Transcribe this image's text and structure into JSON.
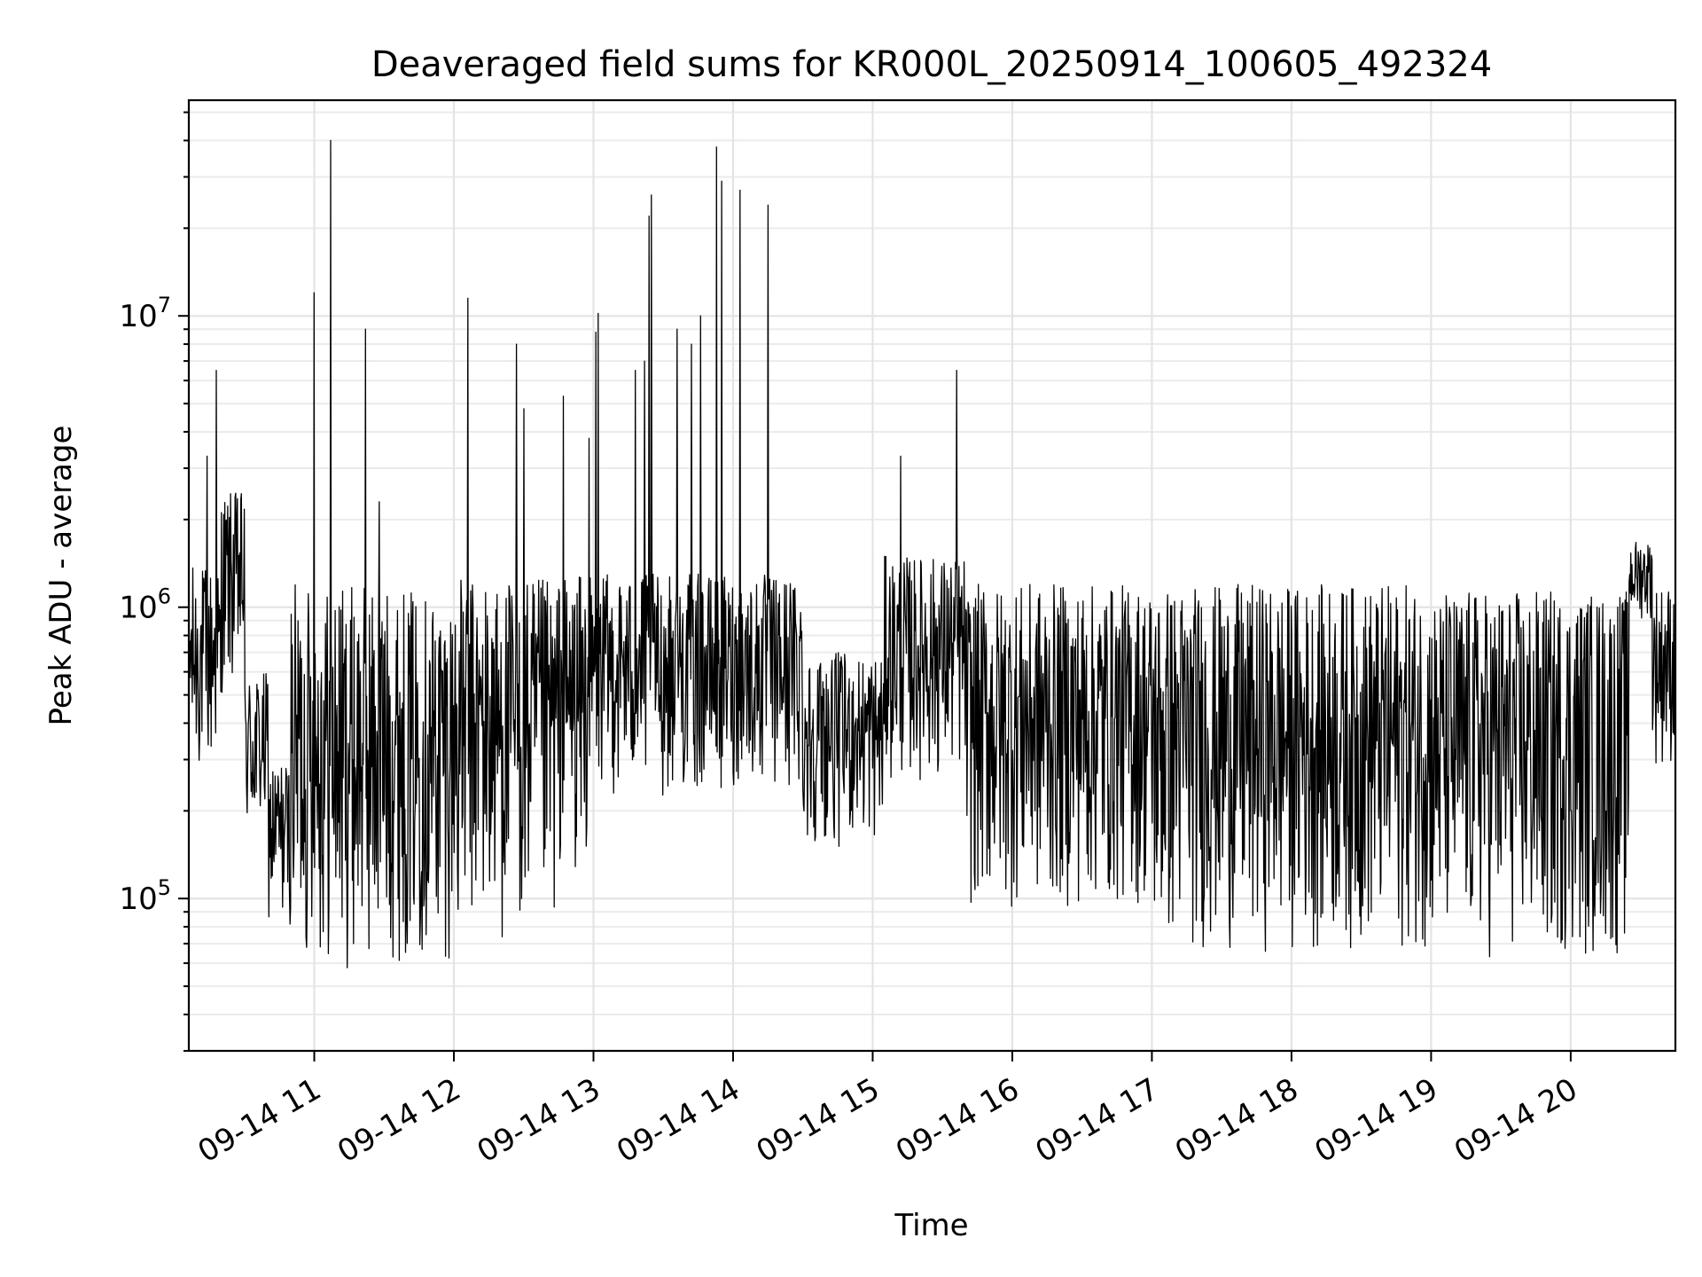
{
  "chart_data": {
    "type": "line",
    "title": "Deaveraged field sums for KR000L_20250914_100605_492324",
    "xlabel": "Time",
    "ylabel": "Peak ADU - average",
    "x_axis": {
      "type": "time",
      "range": [
        "2025-09-14T10:06:05",
        "2025-09-14T20:45:00"
      ],
      "ticks": [
        {
          "time": "2025-09-14T11:00:00",
          "label": "09-14 11"
        },
        {
          "time": "2025-09-14T12:00:00",
          "label": "09-14 12"
        },
        {
          "time": "2025-09-14T13:00:00",
          "label": "09-14 13"
        },
        {
          "time": "2025-09-14T14:00:00",
          "label": "09-14 14"
        },
        {
          "time": "2025-09-14T15:00:00",
          "label": "09-14 15"
        },
        {
          "time": "2025-09-14T16:00:00",
          "label": "09-14 16"
        },
        {
          "time": "2025-09-14T17:00:00",
          "label": "09-14 17"
        },
        {
          "time": "2025-09-14T18:00:00",
          "label": "09-14 18"
        },
        {
          "time": "2025-09-14T19:00:00",
          "label": "09-14 19"
        },
        {
          "time": "2025-09-14T20:00:00",
          "label": "09-14 20"
        }
      ]
    },
    "y_axis": {
      "scale": "log",
      "range": [
        30000,
        55000000
      ],
      "ticks": [
        {
          "value": 100000,
          "base": "10",
          "exp": "5"
        },
        {
          "value": 1000000,
          "base": "10",
          "exp": "6"
        },
        {
          "value": 10000000,
          "base": "10",
          "exp": "7"
        }
      ]
    },
    "grid": true,
    "line_color": "#000000",
    "envelope_note_free": true,
    "series": [
      {
        "sampling": "dense noisy trace; per-segment typical low/high bounds and notable spikes",
        "segments": [
          {
            "start": "2025-09-14T10:06:05",
            "end": "2025-09-14T10:20:00",
            "low": 250000,
            "high": 1400000
          },
          {
            "start": "2025-09-14T10:20:00",
            "end": "2025-09-14T10:30:00",
            "low": 500000,
            "high": 2500000
          },
          {
            "start": "2025-09-14T10:30:00",
            "end": "2025-09-14T10:40:00",
            "low": 150000,
            "high": 600000
          },
          {
            "start": "2025-09-14T10:40:00",
            "end": "2025-09-14T10:50:00",
            "low": 80000,
            "high": 300000
          },
          {
            "start": "2025-09-14T10:50:00",
            "end": "2025-09-14T11:30:00",
            "low": 55000,
            "high": 1200000
          },
          {
            "start": "2025-09-14T11:30:00",
            "end": "2025-09-14T12:00:00",
            "low": 60000,
            "high": 1150000
          },
          {
            "start": "2025-09-14T12:00:00",
            "end": "2025-09-14T12:45:00",
            "low": 70000,
            "high": 1250000
          },
          {
            "start": "2025-09-14T12:45:00",
            "end": "2025-09-14T13:00:00",
            "low": 120000,
            "high": 1300000
          },
          {
            "start": "2025-09-14T13:00:00",
            "end": "2025-09-14T14:30:00",
            "low": 220000,
            "high": 1300000
          },
          {
            "start": "2025-09-14T14:30:00",
            "end": "2025-09-14T15:05:00",
            "low": 150000,
            "high": 700000
          },
          {
            "start": "2025-09-14T15:05:00",
            "end": "2025-09-14T15:40:00",
            "low": 250000,
            "high": 1500000
          },
          {
            "start": "2025-09-14T15:40:00",
            "end": "2025-09-14T17:00:00",
            "low": 90000,
            "high": 1200000
          },
          {
            "start": "2025-09-14T17:00:00",
            "end": "2025-09-14T19:00:00",
            "low": 65000,
            "high": 1200000
          },
          {
            "start": "2025-09-14T19:00:00",
            "end": "2025-09-14T20:25:00",
            "low": 60000,
            "high": 1150000
          },
          {
            "start": "2025-09-14T20:25:00",
            "end": "2025-09-14T20:35:00",
            "low": 900000,
            "high": 1700000
          },
          {
            "start": "2025-09-14T20:35:00",
            "end": "2025-09-14T20:45:00",
            "low": 280000,
            "high": 1200000
          }
        ],
        "spikes": [
          {
            "time": "2025-09-14T10:14:00",
            "value": 3300000
          },
          {
            "time": "2025-09-14T10:18:00",
            "value": 6500000
          },
          {
            "time": "2025-09-14T11:00:00",
            "value": 12000000
          },
          {
            "time": "2025-09-14T11:07:00",
            "value": 40000000
          },
          {
            "time": "2025-09-14T11:22:00",
            "value": 9000000
          },
          {
            "time": "2025-09-14T11:28:00",
            "value": 2300000
          },
          {
            "time": "2025-09-14T12:06:00",
            "value": 11500000
          },
          {
            "time": "2025-09-14T12:27:00",
            "value": 8000000
          },
          {
            "time": "2025-09-14T12:30:00",
            "value": 4800000
          },
          {
            "time": "2025-09-14T12:47:00",
            "value": 5300000
          },
          {
            "time": "2025-09-14T12:58:00",
            "value": 3800000
          },
          {
            "time": "2025-09-14T13:01:00",
            "value": 8800000
          },
          {
            "time": "2025-09-14T13:02:00",
            "value": 10200000
          },
          {
            "time": "2025-09-14T13:18:00",
            "value": 6500000
          },
          {
            "time": "2025-09-14T13:22:00",
            "value": 7000000
          },
          {
            "time": "2025-09-14T13:24:00",
            "value": 22000000
          },
          {
            "time": "2025-09-14T13:25:00",
            "value": 26000000
          },
          {
            "time": "2025-09-14T13:36:00",
            "value": 9000000
          },
          {
            "time": "2025-09-14T13:42:00",
            "value": 8000000
          },
          {
            "time": "2025-09-14T13:46:00",
            "value": 10000000
          },
          {
            "time": "2025-09-14T13:53:00",
            "value": 38000000
          },
          {
            "time": "2025-09-14T13:55:00",
            "value": 29000000
          },
          {
            "time": "2025-09-14T14:03:00",
            "value": 27000000
          },
          {
            "time": "2025-09-14T14:15:00",
            "value": 24000000
          },
          {
            "time": "2025-09-14T15:12:00",
            "value": 3300000
          },
          {
            "time": "2025-09-14T15:36:00",
            "value": 6500000
          }
        ]
      }
    ]
  }
}
